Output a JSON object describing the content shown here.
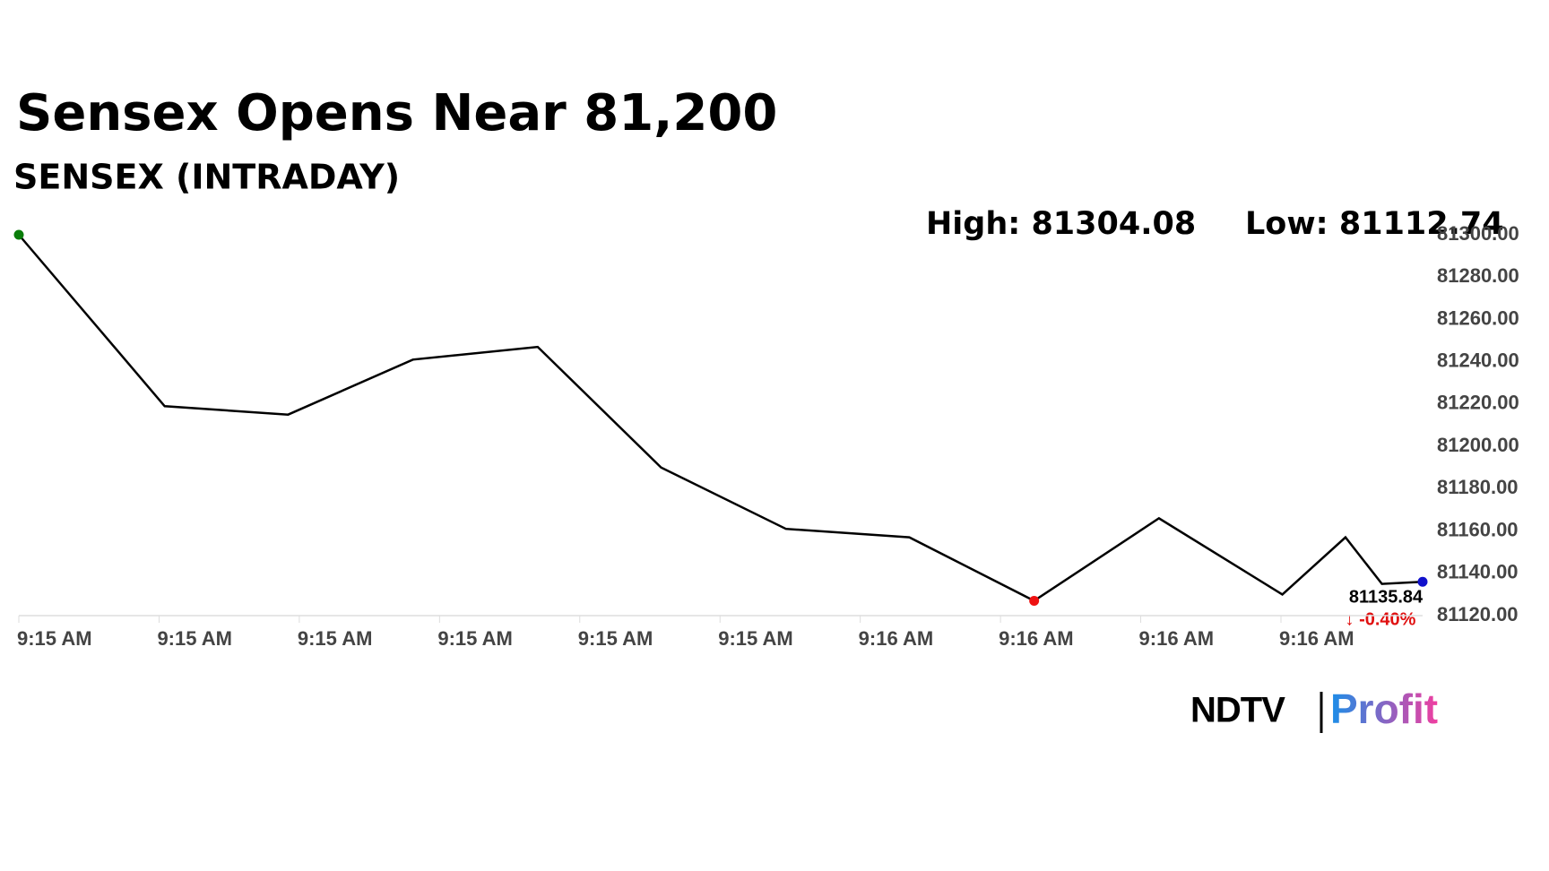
{
  "chart_data": {
    "type": "line",
    "title": "Sensex Opens Near 81,200",
    "subtitle": "SENSEX (INTRADAY)",
    "annotations": {
      "high": "High: 81304.08",
      "low": "Low: 81112.74",
      "last_value": "81135.84",
      "change": "↓ -0.40%"
    },
    "x": [
      0,
      1.04,
      1.92,
      2.81,
      3.7,
      4.58,
      5.47,
      6.35,
      7.24,
      8.13,
      9.01,
      9.46,
      9.72,
      10.01
    ],
    "series": [
      {
        "name": "SENSEX",
        "color": "#000000",
        "values": [
          81300,
          81219,
          81215,
          81241,
          81247,
          81190,
          81161,
          81157,
          81127,
          81166,
          81130,
          81157,
          81135,
          81136
        ]
      }
    ],
    "markers": [
      {
        "index": 0,
        "color": "#0a7d0a"
      },
      {
        "index": 8,
        "color": "#ee1111"
      },
      {
        "index": 13,
        "color": "#1111cc"
      }
    ],
    "xlim": [
      0,
      10.01
    ],
    "xticks": [
      {
        "value": 0,
        "label": "9:15 AM"
      },
      {
        "value": 1,
        "label": "9:15 AM"
      },
      {
        "value": 2,
        "label": "9:15 AM"
      },
      {
        "value": 3,
        "label": "9:15 AM"
      },
      {
        "value": 4,
        "label": "9:15 AM"
      },
      {
        "value": 5,
        "label": "9:15 AM"
      },
      {
        "value": 6,
        "label": "9:16 AM"
      },
      {
        "value": 7,
        "label": "9:16 AM"
      },
      {
        "value": 8,
        "label": "9:16 AM"
      },
      {
        "value": 9,
        "label": "9:16 AM"
      }
    ],
    "ylim": [
      81120,
      81300
    ],
    "yticks": [
      {
        "value": 81300,
        "label": "81300.00"
      },
      {
        "value": 81280,
        "label": "81280.00"
      },
      {
        "value": 81260,
        "label": "81260.00"
      },
      {
        "value": 81240,
        "label": "81240.00"
      },
      {
        "value": 81220,
        "label": "81220.00"
      },
      {
        "value": 81200,
        "label": "81200.00"
      },
      {
        "value": 81180,
        "label": "81180.00"
      },
      {
        "value": 81160,
        "label": "81160.00"
      },
      {
        "value": 81140,
        "label": "81140.00"
      },
      {
        "value": 81120,
        "label": "81120.00"
      }
    ],
    "change_color": "#e01010",
    "logo": {
      "left": "NDTV",
      "right": "Profit"
    }
  }
}
